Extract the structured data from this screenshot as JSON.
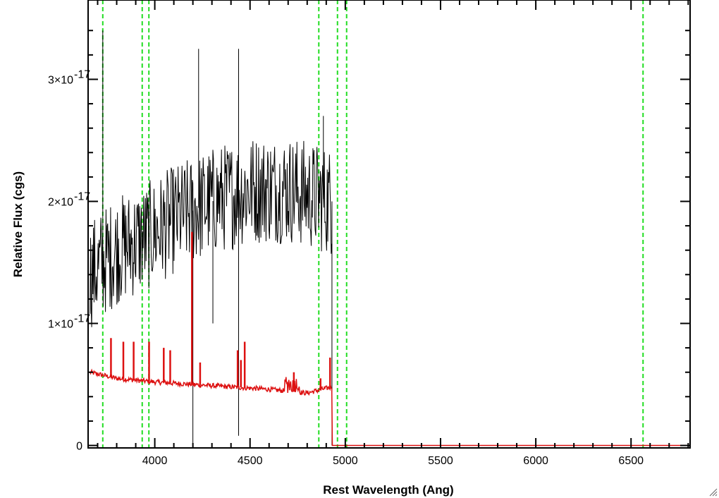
{
  "chart_data": {
    "type": "line",
    "title": "",
    "xlabel": "Rest Wavelength (Ang)",
    "ylabel": "Relative Flux (cgs)",
    "xlim": [
      3650,
      6810
    ],
    "ylim": [
      -0.02,
      3.65
    ],
    "y_multiplier_label": "×10⁻¹⁷",
    "x_ticks": [
      {
        "value": 4000,
        "label": "4000"
      },
      {
        "value": 4500,
        "label": "4500"
      },
      {
        "value": 5000,
        "label": "5000"
      },
      {
        "value": 5500,
        "label": "5500"
      },
      {
        "value": 6000,
        "label": "6000"
      },
      {
        "value": 6500,
        "label": "6500"
      }
    ],
    "y_ticks": [
      {
        "value": 0,
        "mantissa": "0",
        "exponent": ""
      },
      {
        "value": 1,
        "mantissa": "1×10",
        "exponent": "-17"
      },
      {
        "value": 2,
        "mantissa": "2×10",
        "exponent": "-17"
      },
      {
        "value": 3,
        "mantissa": "3×10",
        "exponent": "-17"
      }
    ],
    "grid": false,
    "legend": "none",
    "vertical_lines": {
      "color": "#22dd22",
      "style": "dashed",
      "x": [
        3727,
        3934,
        3969,
        4861,
        4959,
        5007,
        6563
      ]
    },
    "series": [
      {
        "color": "#000000",
        "kind": "observed spectrum (noisy)",
        "valid_range": [
          3660,
          4930
        ],
        "continuum": [
          [
            3660,
            1.4
          ],
          [
            3800,
            1.6
          ],
          [
            3950,
            1.7
          ],
          [
            4100,
            1.85
          ],
          [
            4300,
            2.0
          ],
          [
            4500,
            2.1
          ],
          [
            4700,
            2.1
          ],
          [
            4930,
            2.0
          ]
        ],
        "noise_amplitude": 0.45,
        "spikes": [
          {
            "x": 3727,
            "y": 3.4
          },
          {
            "x": 4200,
            "y": 0.0
          },
          {
            "x": 4230,
            "y": 3.25
          },
          {
            "x": 4305,
            "y": 1.0
          },
          {
            "x": 4440,
            "y": 3.25
          },
          {
            "x": 4440,
            "y": 0.08
          },
          {
            "x": 4885,
            "y": 2.7
          },
          {
            "x": 4930,
            "y": 0.0
          }
        ]
      },
      {
        "color": "#dd1111",
        "kind": "model spectrum",
        "points": [
          [
            3660,
            0.6
          ],
          [
            3800,
            0.55
          ],
          [
            4000,
            0.52
          ],
          [
            4200,
            0.5
          ],
          [
            4400,
            0.48
          ],
          [
            4600,
            0.46
          ],
          [
            4800,
            0.43
          ],
          [
            4930,
            0.48
          ],
          [
            4932,
            0.0
          ],
          [
            6810,
            0.0
          ]
        ],
        "emission_lines": [
          {
            "x": 3770,
            "y": 0.88
          },
          {
            "x": 3835,
            "y": 0.85
          },
          {
            "x": 3889,
            "y": 0.85
          },
          {
            "x": 3970,
            "y": 0.85
          },
          {
            "x": 4047,
            "y": 0.8
          },
          {
            "x": 4081,
            "y": 0.78
          },
          {
            "x": 4195,
            "y": 1.75
          },
          {
            "x": 4238,
            "y": 0.68
          },
          {
            "x": 4435,
            "y": 0.78
          },
          {
            "x": 4452,
            "y": 0.7
          },
          {
            "x": 4472,
            "y": 0.85
          },
          {
            "x": 4730,
            "y": 0.6
          },
          {
            "x": 4870,
            "y": 0.55
          },
          {
            "x": 4920,
            "y": 0.72
          }
        ]
      }
    ]
  },
  "window": {
    "resize_grip_icon": "resize-grip-icon"
  }
}
